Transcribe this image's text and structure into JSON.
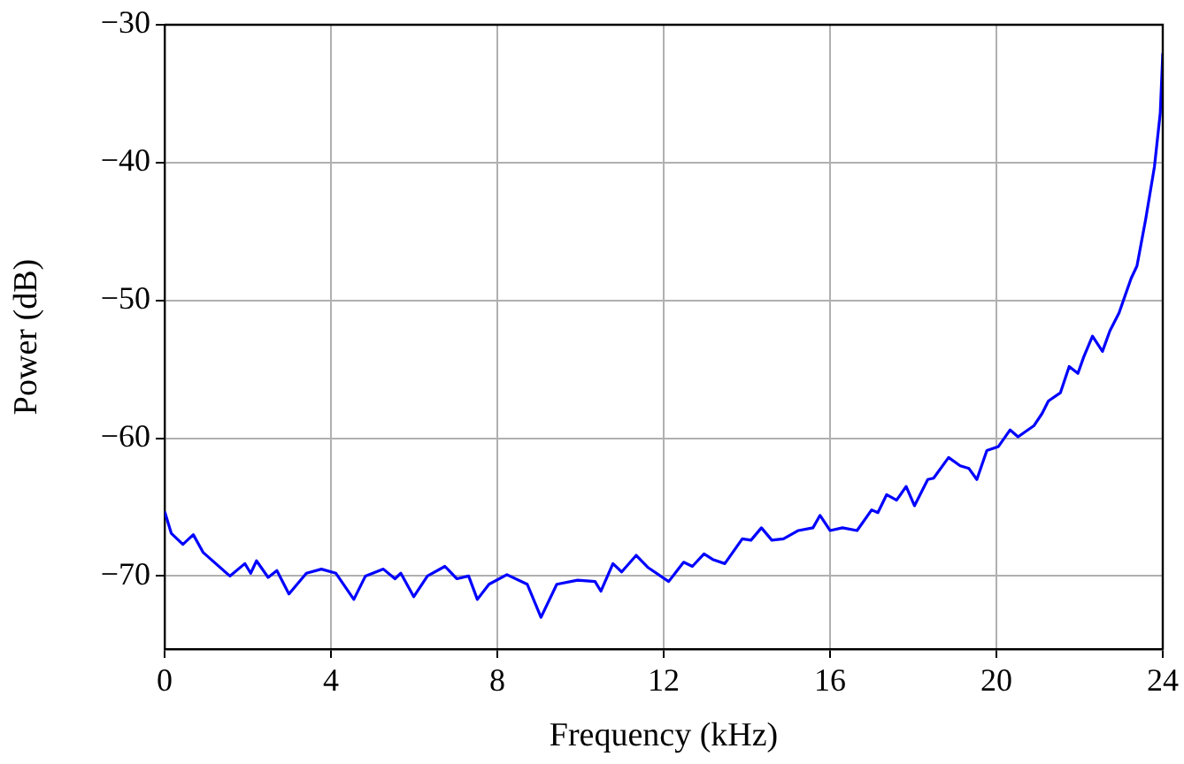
{
  "chart_data": {
    "type": "line",
    "xlabel": "Frequency (kHz)",
    "ylabel": "Power (dB)",
    "xlim": [
      0,
      24
    ],
    "ylim": [
      -75.3,
      -30
    ],
    "xticks": [
      0,
      4,
      8,
      12,
      16,
      20,
      24
    ],
    "yticks": [
      {
        "value": -70,
        "label": "−70"
      },
      {
        "value": -60,
        "label": "−60"
      },
      {
        "value": -50,
        "label": "−50"
      },
      {
        "value": -40,
        "label": "−40"
      },
      {
        "value": -30,
        "label": "−30"
      }
    ],
    "grid": true,
    "legend": false,
    "marker": "none",
    "line_style": "solid",
    "series": [
      {
        "color": "#0000ff",
        "x": [
          0.01,
          0.16,
          0.44,
          0.69,
          0.93,
          1.57,
          1.93,
          2.07,
          2.21,
          2.49,
          2.7,
          2.99,
          3.41,
          3.77,
          4.12,
          4.55,
          4.83,
          5.26,
          5.54,
          5.68,
          5.99,
          6.32,
          6.74,
          7.03,
          7.31,
          7.52,
          7.8,
          8.23,
          8.72,
          9.05,
          9.43,
          9.93,
          10.35,
          10.49,
          10.78,
          10.99,
          11.34,
          11.63,
          12.12,
          12.48,
          12.69,
          12.97,
          13.18,
          13.47,
          13.89,
          14.1,
          14.35,
          14.6,
          14.88,
          15.24,
          15.59,
          15.76,
          16.0,
          16.3,
          16.65,
          17.0,
          17.15,
          17.36,
          17.6,
          17.83,
          18.03,
          18.35,
          18.49,
          18.85,
          19.13,
          19.34,
          19.53,
          19.77,
          20.05,
          20.33,
          20.52,
          20.9,
          21.1,
          21.25,
          21.54,
          21.75,
          21.96,
          22.1,
          22.31,
          22.55,
          22.73,
          22.95,
          23.24,
          23.38,
          23.59,
          23.8,
          23.94,
          24.0
        ],
        "values": [
          -65.4,
          -66.9,
          -67.7,
          -67.0,
          -68.3,
          -70.0,
          -69.1,
          -69.8,
          -68.9,
          -70.1,
          -69.6,
          -71.3,
          -69.8,
          -69.5,
          -69.8,
          -71.7,
          -70.0,
          -69.5,
          -70.2,
          -69.8,
          -71.5,
          -70.0,
          -69.3,
          -70.2,
          -70.0,
          -71.7,
          -70.6,
          -69.9,
          -70.6,
          -73.0,
          -70.6,
          -70.3,
          -70.4,
          -71.1,
          -69.1,
          -69.7,
          -68.5,
          -69.4,
          -70.4,
          -69.0,
          -69.3,
          -68.4,
          -68.8,
          -69.1,
          -67.3,
          -67.4,
          -66.5,
          -67.4,
          -67.3,
          -66.7,
          -66.5,
          -65.6,
          -66.7,
          -66.5,
          -66.7,
          -65.2,
          -65.4,
          -64.1,
          -64.5,
          -63.5,
          -64.9,
          -63.0,
          -62.9,
          -61.4,
          -62.0,
          -62.2,
          -63.0,
          -60.9,
          -60.6,
          -59.4,
          -59.9,
          -59.1,
          -58.2,
          -57.3,
          -56.7,
          -54.8,
          -55.3,
          -54.1,
          -52.6,
          -53.7,
          -52.2,
          -50.9,
          -48.4,
          -47.5,
          -44.1,
          -40.3,
          -36.4,
          -32.1
        ]
      }
    ]
  }
}
